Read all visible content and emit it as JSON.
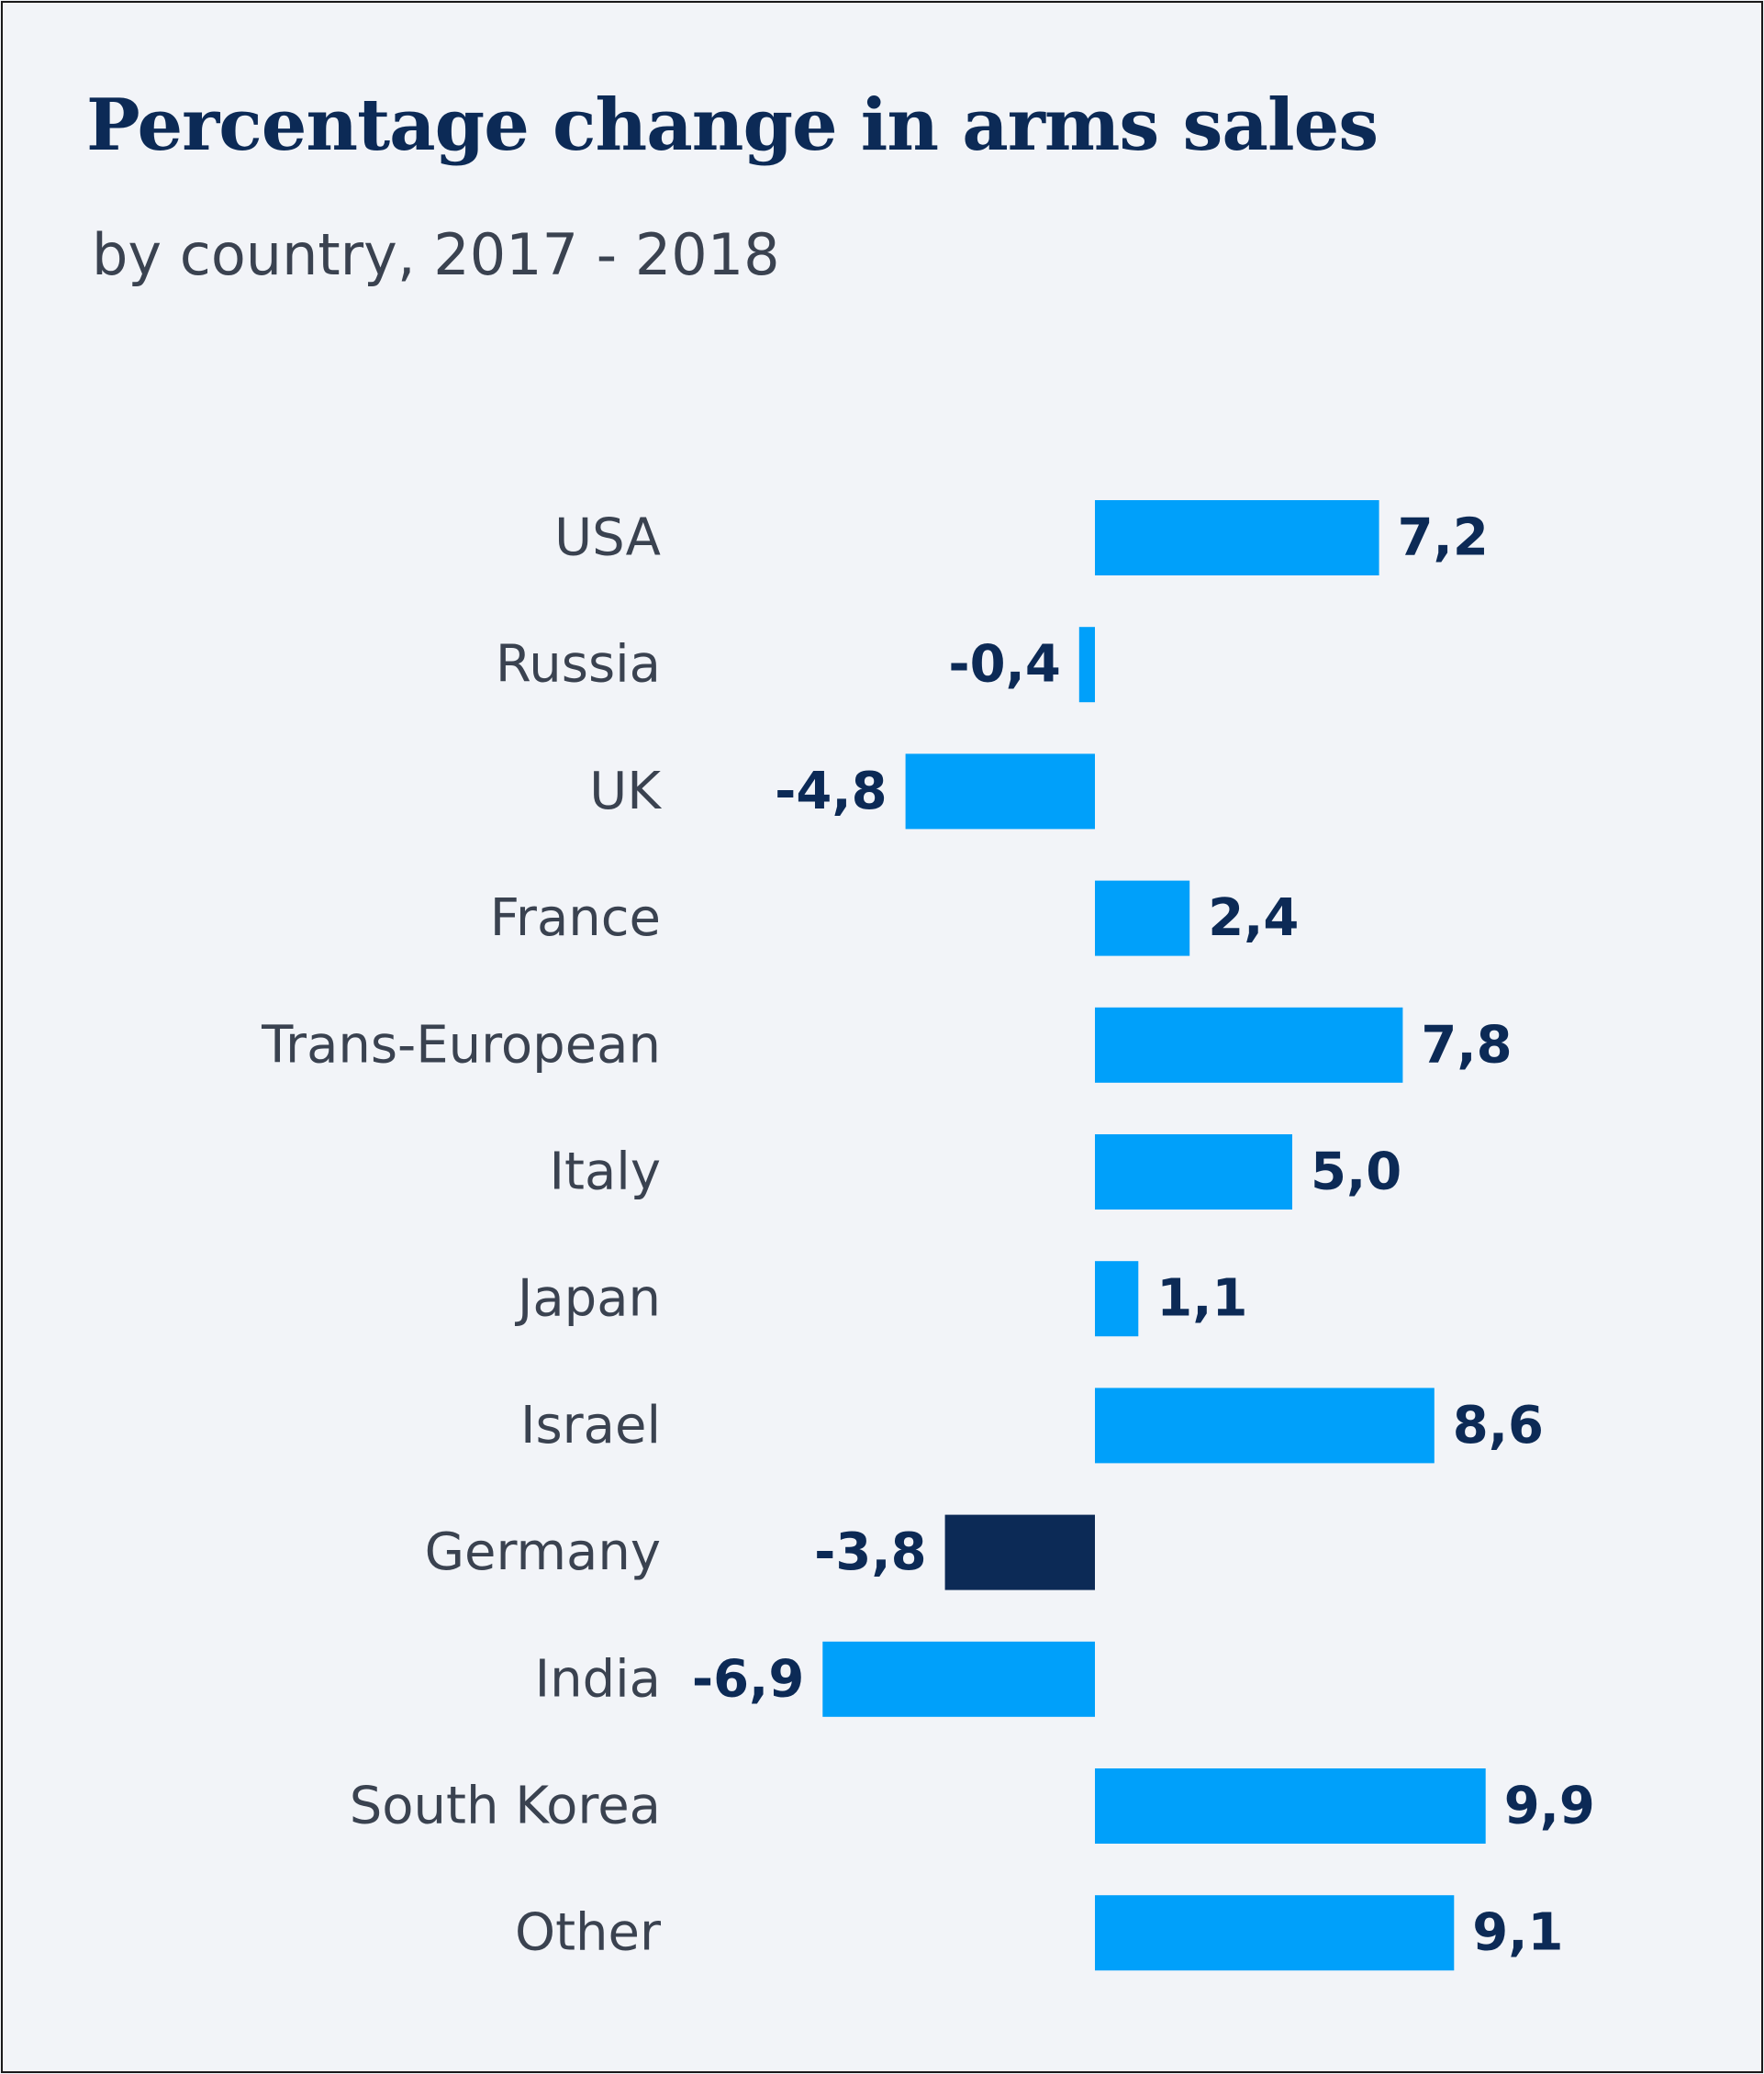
{
  "chart_data": {
    "type": "bar",
    "orientation": "horizontal",
    "title": "Percentage change in arms sales",
    "subtitle": "by country, 2017 - 2018",
    "categories": [
      "USA",
      "Russia",
      "UK",
      "France",
      "Trans-European",
      "Italy",
      "Japan",
      "Israel",
      "Germany",
      "India",
      "South Korea",
      "Other"
    ],
    "values": [
      7.2,
      -0.4,
      -4.8,
      2.4,
      7.8,
      5.0,
      1.1,
      8.6,
      -3.8,
      -6.9,
      9.9,
      9.1
    ],
    "value_labels": [
      "7,2",
      "-0,4",
      "-4,8",
      "2,4",
      "7,8",
      "5,0",
      "1,1",
      "8,6",
      "-3,8",
      "-6,9",
      "9,9",
      "9,1"
    ],
    "highlight": "Germany",
    "xlabel": "",
    "ylabel": "",
    "xlim": [
      -6.9,
      9.9
    ],
    "grid": false,
    "colors": {
      "bar": "#00a0fa",
      "highlight": "#0c2a56",
      "value_text": "#0c2a56",
      "category_text": "#3a4250"
    }
  }
}
